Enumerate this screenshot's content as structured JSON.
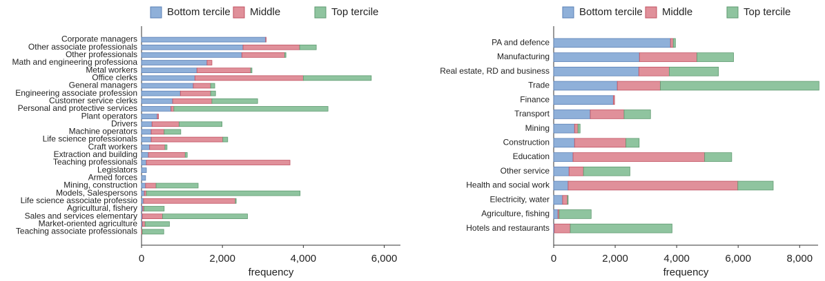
{
  "chart_data": [
    {
      "type": "bar",
      "orientation": "horizontal",
      "stacked": true,
      "xlabel": "frequency",
      "categories": [
        "Corporate managers",
        "Other associate professionals",
        "Other professionals",
        "Math and engineering professiona",
        "Metal workers",
        "Office clerks",
        "General managers",
        "Engineering associate profession",
        "Customer service clerks",
        "Personal and protective services",
        "Plant operators",
        "Drivers",
        "Machine operators",
        "Life science professionals",
        "Craft workers",
        "Extraction and building",
        "Teaching professionals",
        "Legislators",
        "Armed forces",
        "Mining, construction",
        "Models, Salespersons",
        "Life science associate professio",
        "Agricultural, fishery",
        "Sales and services elementary",
        "Market-oriented agriculture",
        "Teaching associate professionals"
      ],
      "series": [
        {
          "name": "Bottom tercile",
          "color": "#8fb0d9",
          "values": [
            3070,
            2510,
            2480,
            1620,
            1370,
            1320,
            1280,
            960,
            770,
            730,
            390,
            260,
            240,
            240,
            200,
            170,
            120,
            120,
            100,
            100,
            70,
            50,
            30,
            20,
            20,
            0
          ]
        },
        {
          "name": "Middle",
          "color": "#e0909a",
          "values": [
            10,
            1400,
            1060,
            120,
            1330,
            2680,
            430,
            750,
            970,
            70,
            30,
            670,
            320,
            1770,
            380,
            910,
            3550,
            0,
            0,
            260,
            50,
            2270,
            30,
            500,
            70,
            20
          ]
        },
        {
          "name": "Top tercile",
          "color": "#8fc49f",
          "values": [
            0,
            410,
            30,
            0,
            30,
            1680,
            100,
            120,
            1130,
            3810,
            0,
            1060,
            410,
            120,
            50,
            50,
            0,
            0,
            0,
            1040,
            3800,
            20,
            500,
            2100,
            600,
            530
          ]
        }
      ],
      "xlim": [
        0,
        6400
      ],
      "xticks": [
        0,
        {
          "value": 2000,
          "label": "2,000"
        },
        {
          "value": 4000,
          "label": "4,000"
        },
        {
          "value": 6000,
          "label": "6,000"
        }
      ],
      "legend": "top"
    },
    {
      "type": "bar",
      "orientation": "horizontal",
      "stacked": true,
      "xlabel": "frequency",
      "categories": [
        "PA and defence",
        "Manufacturing",
        "Real estate, RD and business",
        "Trade",
        "Finance",
        "Transport",
        "Mining",
        "Construction",
        "Education",
        "Other service",
        "Health and social work",
        "Electricity, water",
        "Agriculture, fishing",
        "Hotels and restaurants"
      ],
      "series": [
        {
          "name": "Bottom tercile",
          "color": "#8fb0d9",
          "values": [
            3800,
            2790,
            2770,
            2070,
            1940,
            1190,
            680,
            680,
            630,
            500,
            470,
            290,
            140,
            20
          ]
        },
        {
          "name": "Middle",
          "color": "#e0909a",
          "values": [
            90,
            1870,
            990,
            1400,
            40,
            1100,
            110,
            1670,
            4280,
            470,
            5520,
            160,
            40,
            520
          ]
        },
        {
          "name": "Top tercile",
          "color": "#8fc49f",
          "values": [
            70,
            1190,
            1600,
            5160,
            0,
            860,
            70,
            430,
            880,
            1510,
            1150,
            20,
            1040,
            3310
          ]
        }
      ],
      "xlim": [
        0,
        8600
      ],
      "xticks": [
        0,
        {
          "value": 2000,
          "label": "2,000"
        },
        {
          "value": 4000,
          "label": "4,000"
        },
        {
          "value": 6000,
          "label": "6,000"
        },
        {
          "value": 8000,
          "label": "8,000"
        }
      ],
      "legend": "top"
    }
  ]
}
